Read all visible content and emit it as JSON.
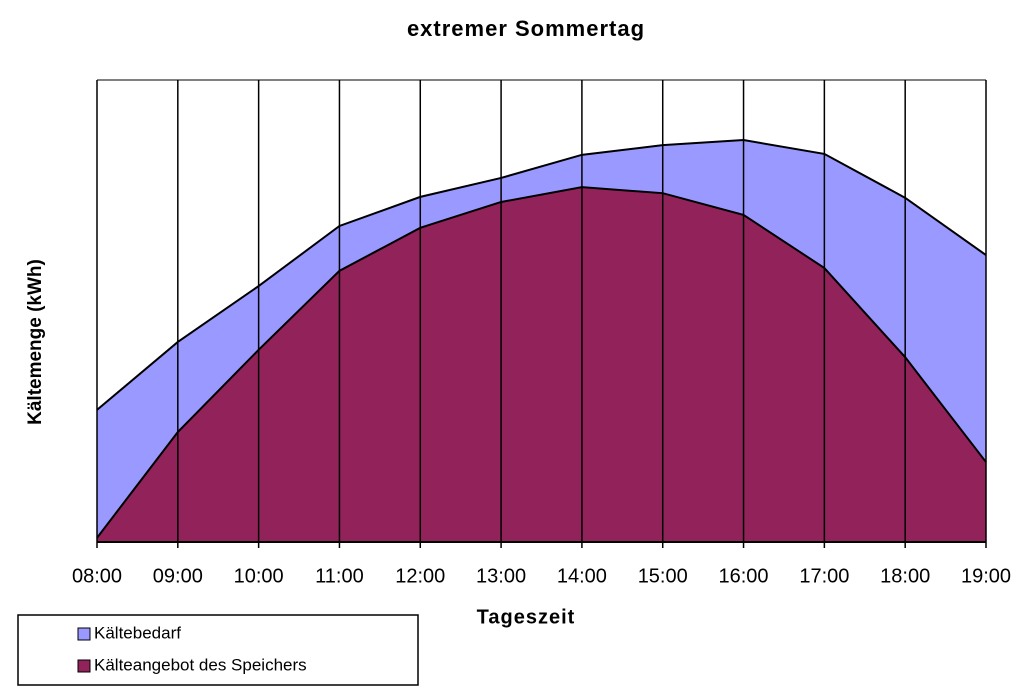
{
  "chart_data": {
    "type": "area",
    "title": "extremer Sommertag",
    "x_label": "Tageszeit",
    "y_label": "Kältemenge (kWh)",
    "categories": [
      "08:00",
      "09:00",
      "10:00",
      "11:00",
      "12:00",
      "13:00",
      "14:00",
      "15:00",
      "16:00",
      "17:00",
      "18:00",
      "19:00"
    ],
    "series": [
      {
        "name": "Kältebedarf",
        "color": "#9999ff",
        "values": [
          28.6,
          43.3,
          55.4,
          68.4,
          74.7,
          78.8,
          83.8,
          85.9,
          87.0,
          84.0,
          74.5,
          62.1
        ]
      },
      {
        "name": "Kälteangebot des Speichers",
        "color": "#92235a",
        "values": [
          0.9,
          23.8,
          41.6,
          58.7,
          68.0,
          73.6,
          76.8,
          75.5,
          70.8,
          59.3,
          40.0,
          17.3
        ]
      }
    ],
    "ylim": [
      0,
      100
    ],
    "grid": true
  }
}
